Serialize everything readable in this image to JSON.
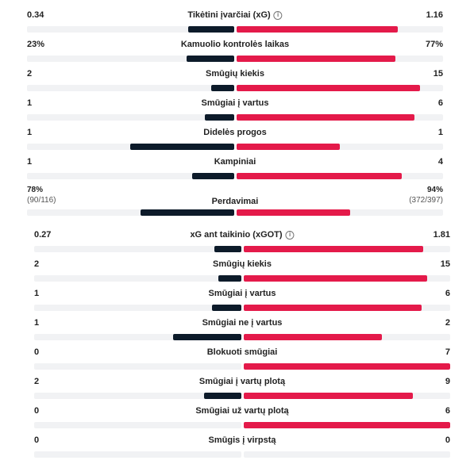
{
  "colors": {
    "home": "#0d1b2a",
    "away": "#e41a4a",
    "track": "#f1f2f4"
  },
  "info_icon": "i",
  "section1": [
    {
      "label": "Tikėtini įvarčiai (xG)",
      "home": "0.34",
      "away": "1.16",
      "home_frac": 0.22,
      "away_frac": 0.78,
      "info": true
    },
    {
      "label": "Kamuolio kontrolės laikas",
      "home": "23%",
      "away": "77%",
      "home_frac": 0.23,
      "away_frac": 0.77,
      "info": false
    },
    {
      "label": "Smūgių kiekis",
      "home": "2",
      "away": "15",
      "home_frac": 0.11,
      "away_frac": 0.89,
      "info": false
    },
    {
      "label": "Smūgiai į vartus",
      "home": "1",
      "away": "6",
      "home_frac": 0.14,
      "away_frac": 0.86,
      "info": false
    },
    {
      "label": "Didelės progos",
      "home": "1",
      "away": "1",
      "home_frac": 0.5,
      "away_frac": 0.5,
      "info": false
    },
    {
      "label": "Kampiniai",
      "home": "1",
      "away": "4",
      "home_frac": 0.2,
      "away_frac": 0.8,
      "info": false
    }
  ],
  "passes": {
    "label": "Perdavimai",
    "home": "78%",
    "home_sub": "(90/116)",
    "away": "94%",
    "away_sub": "(372/397)",
    "home_frac": 0.45,
    "away_frac": 0.55
  },
  "section2": [
    {
      "label": "xG ant taikinio (xGOT)",
      "home": "0.27",
      "away": "1.81",
      "home_frac": 0.13,
      "away_frac": 0.87,
      "info": true
    },
    {
      "label": "Smūgių kiekis",
      "home": "2",
      "away": "15",
      "home_frac": 0.11,
      "away_frac": 0.89,
      "info": false
    },
    {
      "label": "Smūgiai į vartus",
      "home": "1",
      "away": "6",
      "home_frac": 0.14,
      "away_frac": 0.86,
      "info": false
    },
    {
      "label": "Smūgiai ne į vartus",
      "home": "1",
      "away": "2",
      "home_frac": 0.33,
      "away_frac": 0.67,
      "info": false
    },
    {
      "label": "Blokuoti smūgiai",
      "home": "0",
      "away": "7",
      "home_frac": 0.0,
      "away_frac": 1.0,
      "info": false
    },
    {
      "label": "Smūgiai į vartų plotą",
      "home": "2",
      "away": "9",
      "home_frac": 0.18,
      "away_frac": 0.82,
      "info": false
    },
    {
      "label": "Smūgiai už vartų plotą",
      "home": "0",
      "away": "6",
      "home_frac": 0.0,
      "away_frac": 1.0,
      "info": false
    },
    {
      "label": "Smūgis į virpstą",
      "home": "0",
      "away": "0",
      "home_frac": 0.0,
      "away_frac": 0.0,
      "info": false
    }
  ]
}
